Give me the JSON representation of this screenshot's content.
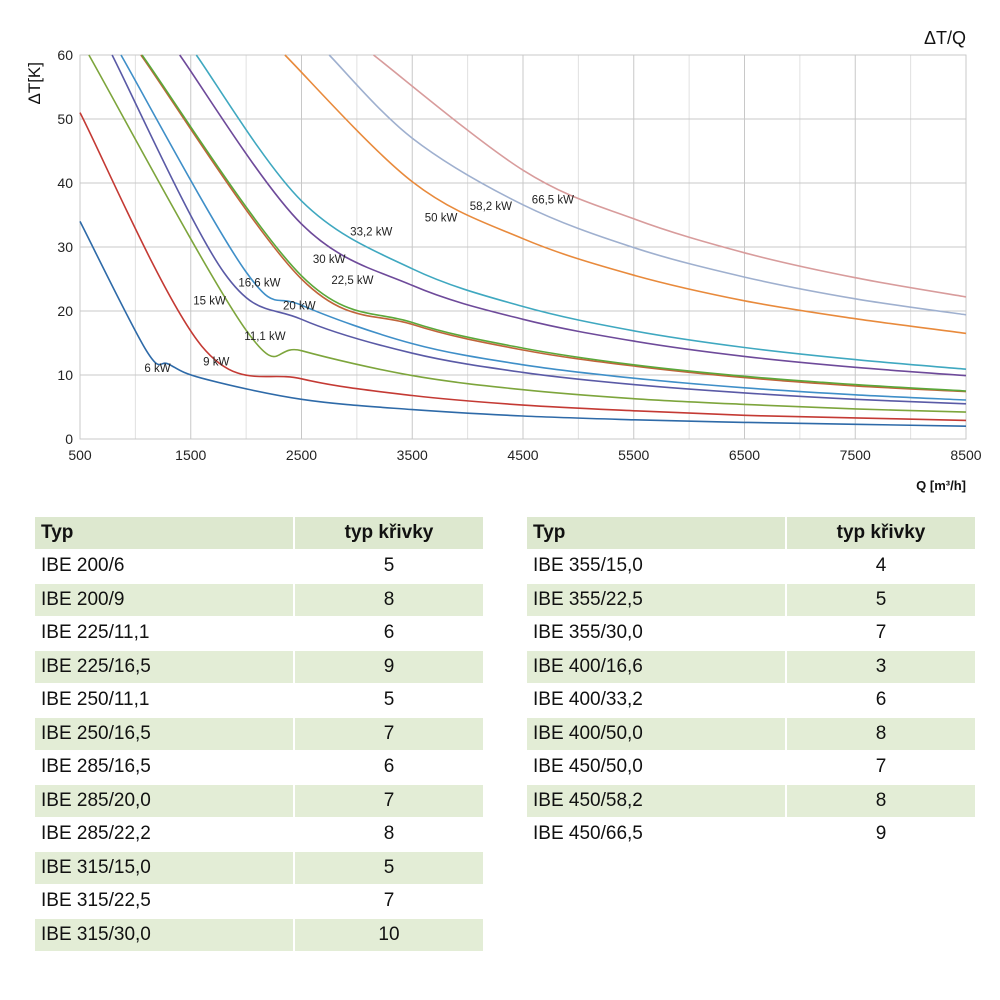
{
  "chart_data": {
    "type": "line",
    "title": "ΔT/Q",
    "ylabel": "ΔT[K]",
    "xlabel": "Q [m³/h]",
    "xlim": [
      500,
      8500
    ],
    "ylim": [
      0,
      60
    ],
    "x_ticks": [
      "500",
      "1500",
      "2500",
      "3500",
      "4500",
      "5500",
      "6500",
      "7500",
      "8500"
    ],
    "y_ticks": [
      "0",
      "10",
      "20",
      "30",
      "40",
      "50",
      "60"
    ],
    "grid": true,
    "series": [
      {
        "name": "6 kW",
        "color": "#2e6aa8",
        "points": [
          [
            500,
            34
          ],
          [
            1100,
            13.8
          ],
          [
            1300,
            11.7
          ],
          [
            1600,
            9.5
          ],
          [
            2500,
            6.2
          ],
          [
            3500,
            4.6
          ],
          [
            4500,
            3.6
          ],
          [
            5500,
            3.0
          ],
          [
            6500,
            2.6
          ],
          [
            7500,
            2.3
          ],
          [
            8500,
            2.0
          ]
        ]
      },
      {
        "name": "9 kW",
        "color": "#c43a34",
        "points": [
          [
            500,
            51
          ],
          [
            1600,
            14.5
          ],
          [
            2500,
            9.4
          ],
          [
            3500,
            6.8
          ],
          [
            4500,
            5.3
          ],
          [
            5500,
            4.4
          ],
          [
            6500,
            3.7
          ],
          [
            7500,
            3.3
          ],
          [
            8500,
            2.9
          ]
        ]
      },
      {
        "name": "11,1 kW",
        "color": "#7da53c",
        "points": [
          [
            580,
            60
          ],
          [
            2000,
            17
          ],
          [
            2500,
            13.8
          ],
          [
            3500,
            9.9
          ],
          [
            4500,
            7.7
          ],
          [
            5500,
            6.3
          ],
          [
            6500,
            5.4
          ],
          [
            7500,
            4.7
          ],
          [
            8500,
            4.2
          ]
        ]
      },
      {
        "name": "15 kW",
        "color": "#5a5aa6",
        "points": [
          [
            790,
            60
          ],
          [
            1800,
            26
          ],
          [
            2500,
            18.7
          ],
          [
            3500,
            13.4
          ],
          [
            4500,
            10.4
          ],
          [
            5500,
            8.5
          ],
          [
            6500,
            7.2
          ],
          [
            7500,
            6.2
          ],
          [
            8500,
            5.5
          ]
        ]
      },
      {
        "name": "16,6 kW",
        "color": "#3f8fc8",
        "points": [
          [
            870,
            60
          ],
          [
            2000,
            26.1
          ],
          [
            2500,
            20.9
          ],
          [
            3500,
            14.9
          ],
          [
            4500,
            11.6
          ],
          [
            5500,
            9.5
          ],
          [
            6500,
            8.0
          ],
          [
            7500,
            6.9
          ],
          [
            8500,
            6.1
          ]
        ]
      },
      {
        "name": "20 kW",
        "color": "#c0643a",
        "points": [
          [
            1050,
            60
          ],
          [
            2500,
            25
          ],
          [
            3500,
            17.9
          ],
          [
            4500,
            13.9
          ],
          [
            5500,
            11.4
          ],
          [
            6500,
            9.6
          ],
          [
            7500,
            8.3
          ],
          [
            8500,
            7.4
          ]
        ]
      },
      {
        "name": "22,5 kW",
        "color": "#5aa83a",
        "points": [
          [
            1060,
            60
          ],
          [
            2500,
            25.5
          ],
          [
            3500,
            18.2
          ],
          [
            4500,
            14.2
          ],
          [
            5500,
            11.6
          ],
          [
            6500,
            9.8
          ],
          [
            7500,
            8.5
          ],
          [
            8500,
            7.5
          ]
        ]
      },
      {
        "name": "30 kW",
        "color": "#6e4a9a",
        "points": [
          [
            1400,
            60
          ],
          [
            2500,
            33.6
          ],
          [
            3500,
            24
          ],
          [
            4500,
            18.7
          ],
          [
            5500,
            15.3
          ],
          [
            6500,
            12.9
          ],
          [
            7500,
            11.2
          ],
          [
            8500,
            9.9
          ]
        ]
      },
      {
        "name": "33,2 kW",
        "color": "#3fa8c0",
        "points": [
          [
            1550,
            60
          ],
          [
            2500,
            37.2
          ],
          [
            3500,
            26.6
          ],
          [
            4500,
            20.7
          ],
          [
            5500,
            16.9
          ],
          [
            6500,
            14.3
          ],
          [
            7500,
            12.4
          ],
          [
            8500,
            10.9
          ]
        ]
      },
      {
        "name": "50 kW",
        "color": "#e88a3c",
        "points": [
          [
            2350,
            60
          ],
          [
            3500,
            40.2
          ],
          [
            4500,
            31.3
          ],
          [
            5500,
            25.6
          ],
          [
            6500,
            21.6
          ],
          [
            7500,
            18.8
          ],
          [
            8500,
            16.5
          ]
        ]
      },
      {
        "name": "58,2 kW",
        "color": "#9fb0cf",
        "points": [
          [
            2750,
            60
          ],
          [
            3500,
            47
          ],
          [
            4500,
            36.6
          ],
          [
            5500,
            29.9
          ],
          [
            6500,
            25.3
          ],
          [
            7500,
            21.9
          ],
          [
            8500,
            19.4
          ]
        ]
      },
      {
        "name": "66,5 kW",
        "color": "#d89c9c",
        "points": [
          [
            3150,
            60
          ],
          [
            4500,
            42
          ],
          [
            5500,
            34.4
          ],
          [
            6500,
            29.1
          ],
          [
            7500,
            25.2
          ],
          [
            8500,
            22.2
          ]
        ]
      }
    ],
    "annotations": [
      {
        "text": "6 kW",
        "x": 1200,
        "y": 10.5
      },
      {
        "text": "9 kW",
        "x": 1730,
        "y": 11.5
      },
      {
        "text": "11,1 kW",
        "x": 2170,
        "y": 15.5
      },
      {
        "text": "15 kW",
        "x": 1670,
        "y": 21
      },
      {
        "text": "16,6 kW",
        "x": 2120,
        "y": 23.8
      },
      {
        "text": "20 kW",
        "x": 2480,
        "y": 20.2
      },
      {
        "text": "22,5 kW",
        "x": 2960,
        "y": 24.2
      },
      {
        "text": "30 kW",
        "x": 2750,
        "y": 27.5
      },
      {
        "text": "33,2 kW",
        "x": 3130,
        "y": 31.8
      },
      {
        "text": "50 kW",
        "x": 3760,
        "y": 34
      },
      {
        "text": "58,2 kW",
        "x": 4210,
        "y": 35.8
      },
      {
        "text": "66,5 kW",
        "x": 4770,
        "y": 36.8
      }
    ]
  },
  "tables": {
    "header": {
      "typ": "Typ",
      "curve": "typ křivky"
    },
    "left": [
      {
        "typ": "IBE 200/6",
        "curve": "5"
      },
      {
        "typ": "IBE 200/9",
        "curve": "8"
      },
      {
        "typ": "IBE 225/11,1",
        "curve": "6"
      },
      {
        "typ": "IBE 225/16,5",
        "curve": "9"
      },
      {
        "typ": "IBE 250/11,1",
        "curve": "5"
      },
      {
        "typ": "IBE 250/16,5",
        "curve": "7"
      },
      {
        "typ": "IBE 285/16,5",
        "curve": "6"
      },
      {
        "typ": "IBE 285/20,0",
        "curve": "7"
      },
      {
        "typ": "IBE 285/22,2",
        "curve": "8"
      },
      {
        "typ": "IBE 315/15,0",
        "curve": "5"
      },
      {
        "typ": "IBE 315/22,5",
        "curve": "7"
      },
      {
        "typ": "IBE 315/30,0",
        "curve": "10"
      }
    ],
    "right": [
      {
        "typ": "IBE 355/15,0",
        "curve": "4"
      },
      {
        "typ": "IBE 355/22,5",
        "curve": "5"
      },
      {
        "typ": "IBE 355/30,0",
        "curve": "7"
      },
      {
        "typ": "IBE 400/16,6",
        "curve": "3"
      },
      {
        "typ": "IBE 400/33,2",
        "curve": "6"
      },
      {
        "typ": "IBE 400/50,0",
        "curve": "8"
      },
      {
        "typ": "IBE 450/50,0",
        "curve": "7"
      },
      {
        "typ": "IBE 450/58,2",
        "curve": "8"
      },
      {
        "typ": "IBE 450/66,5",
        "curve": "9"
      }
    ]
  }
}
